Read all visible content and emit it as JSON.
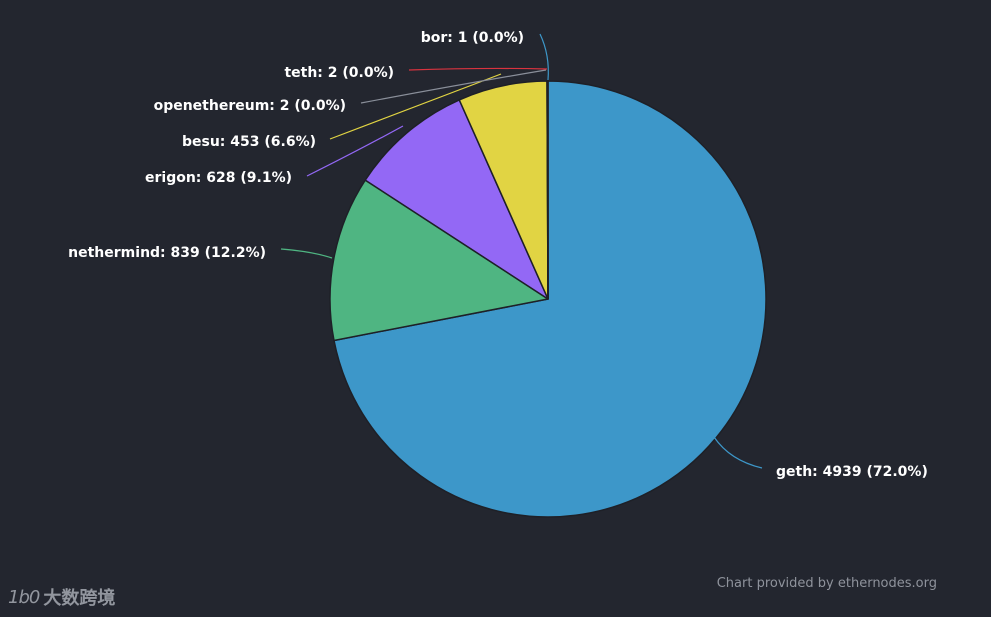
{
  "chart_data": {
    "type": "pie",
    "series": [
      {
        "name": "geth",
        "value": 4939,
        "percent": "72.0%",
        "label": "geth: 4939 (72.0%)",
        "color": "#3d97c9"
      },
      {
        "name": "nethermind",
        "value": 839,
        "percent": "12.2%",
        "label": "nethermind: 839 (12.2%)",
        "color": "#4fb582"
      },
      {
        "name": "erigon",
        "value": 628,
        "percent": "9.1%",
        "label": "erigon: 628 (9.1%)",
        "color": "#9368f5"
      },
      {
        "name": "besu",
        "value": 453,
        "percent": "6.6%",
        "label": "besu: 453 (6.6%)",
        "color": "#e1d443"
      },
      {
        "name": "openethereum",
        "value": 2,
        "percent": "0.0%",
        "label": "openethereum: 2 (0.0%)",
        "color": "#5a5f6b"
      },
      {
        "name": "teth",
        "value": 2,
        "percent": "0.0%",
        "label": "teth: 2 (0.0%)",
        "color": "#d9333f"
      },
      {
        "name": "bor",
        "value": 1,
        "percent": "0.0%",
        "label": "bor: 1 (0.0%)",
        "color": "#3d97c9"
      }
    ],
    "start_angle": "12 o'clock",
    "direction": "clockwise",
    "slice_border_color": "#23262f"
  },
  "credit": "Chart provided by ethernodes.org",
  "watermark": {
    "logo": "1b0",
    "text": "大数跨境"
  },
  "colors": {
    "background": "#23262f",
    "label_text": "#ffffff",
    "credit_text": "#8f939c"
  }
}
